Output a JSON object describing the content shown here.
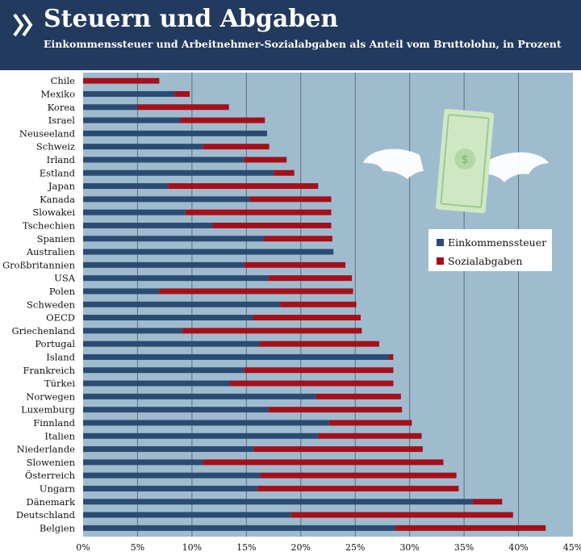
{
  "header": {
    "logo_icon": "double-chevron-icon",
    "title": "Steuern und Abgaben",
    "subtitle": "Einkommenssteuer und Arbeitnehmer-Sozialabgaben als Anteil vom Bruttolohn, in Prozent"
  },
  "colors": {
    "header_bg": "#223a5e",
    "plot_bg": "#9fbccf",
    "income_tax": "#2b4b72",
    "social": "#a50f1a",
    "gridline": "#5e6f78"
  },
  "illustration": {
    "icon": "flying-money-with-wings-icon"
  },
  "chart_data": {
    "type": "bar",
    "orientation": "horizontal",
    "stacked": true,
    "title": "Steuern und Abgaben",
    "subtitle": "Einkommenssteuer und Arbeitnehmer-Sozialabgaben als Anteil vom Bruttolohn, in Prozent",
    "xlim": [
      0,
      45
    ],
    "xticks": [
      0,
      5,
      10,
      15,
      20,
      25,
      30,
      35,
      40,
      45
    ],
    "xtick_labels": [
      "0%",
      "5%",
      "10%",
      "15%",
      "20%",
      "25%",
      "30%",
      "35%",
      "40%",
      "45%"
    ],
    "grid": true,
    "legend_position": "right",
    "categories": [
      "Chile",
      "Mexiko",
      "Korea",
      "Israel",
      "Neuseeland",
      "Schweiz",
      "Irland",
      "Estland",
      "Japan",
      "Kanada",
      "Slowakei",
      "Tschechien",
      "Spanien",
      "Australien",
      "Großbritannien",
      "USA",
      "Polen",
      "Schweden",
      "OECD",
      "Griechenland",
      "Portugal",
      "Island",
      "Frankreich",
      "Türkei",
      "Norwegen",
      "Luxemburg",
      "Finnland",
      "Italien",
      "Niederlande",
      "Slowenien",
      "Österreich",
      "Ungarn",
      "Dänemark",
      "Deutschland",
      "Belgien"
    ],
    "series": [
      {
        "name": "Einkommenssteuer",
        "color": "#2b4b72",
        "values": [
          0,
          8.4,
          5.0,
          8.9,
          16.9,
          11.0,
          14.8,
          17.5,
          7.8,
          15.3,
          9.4,
          11.9,
          16.6,
          23.0,
          14.8,
          17.0,
          7.0,
          18.1,
          15.6,
          9.1,
          16.2,
          28.1,
          14.8,
          13.5,
          21.4,
          17.0,
          22.6,
          21.6,
          15.7,
          11.0,
          16.3,
          16.0,
          35.8,
          19.1,
          28.7
        ]
      },
      {
        "name": "Sozialabgaben",
        "color": "#a50f1a",
        "values": [
          7.0,
          1.4,
          8.4,
          7.8,
          0,
          6.1,
          3.9,
          1.9,
          13.8,
          7.5,
          13.4,
          10.9,
          6.3,
          0,
          9.3,
          7.7,
          17.8,
          7.0,
          9.9,
          16.5,
          11.0,
          0.4,
          13.7,
          15.0,
          7.8,
          12.3,
          7.6,
          9.5,
          15.5,
          22.1,
          18.0,
          18.5,
          2.7,
          20.4,
          13.8
        ]
      }
    ]
  }
}
